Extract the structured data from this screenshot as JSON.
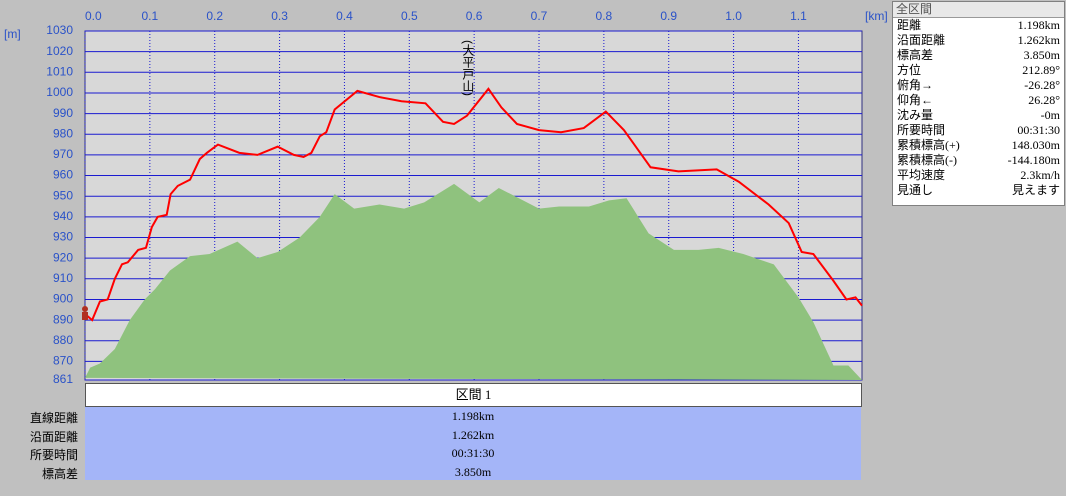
{
  "chart_data": {
    "type": "line",
    "unit_y": "[m]",
    "unit_x": "[km]",
    "annotation": "(大平戸山)",
    "xlim": [
      0,
      1.198
    ],
    "ylim": [
      861,
      1030
    ],
    "xticks": [
      {
        "value": 0,
        "label": "0.0"
      },
      0.1,
      0.2,
      0.3,
      0.4,
      0.5,
      0.6,
      0.7,
      0.8,
      0.9,
      {
        "value": 1,
        "label": "1.0"
      },
      1.1
    ],
    "yticks": [
      861,
      870,
      880,
      890,
      900,
      910,
      920,
      930,
      940,
      950,
      960,
      970,
      980,
      990,
      1000,
      1010,
      1020,
      1030
    ],
    "grid": true,
    "series": [
      {
        "type": "area",
        "color": "#8fc27e",
        "x": [
          0,
          0.008,
          0.023,
          0.046,
          0.069,
          0.092,
          0.108,
          0.131,
          0.162,
          0.192,
          0.235,
          0.266,
          0.297,
          0.331,
          0.362,
          0.385,
          0.415,
          0.454,
          0.492,
          0.523,
          0.569,
          0.608,
          0.638,
          0.7,
          0.731,
          0.777,
          0.808,
          0.835,
          0.869,
          0.908,
          0.946,
          0.977,
          1.015,
          1.062,
          1.1,
          1.123,
          1.154,
          1.177,
          1.198
        ],
        "values": [
          862,
          867,
          869,
          876,
          890,
          900,
          905,
          914,
          921,
          922,
          928,
          920,
          923,
          930,
          940,
          951,
          944,
          946,
          944,
          947,
          956,
          947,
          954,
          944,
          945,
          945,
          948,
          949,
          932,
          924,
          924,
          925,
          922,
          917,
          901,
          889,
          868,
          868,
          861
        ]
      },
      {
        "type": "line",
        "color": "#ff0000",
        "x": [
          0,
          0.011,
          0.023,
          0.035,
          0.046,
          0.057,
          0.066,
          0.082,
          0.094,
          0.103,
          0.112,
          0.126,
          0.132,
          0.143,
          0.162,
          0.177,
          0.188,
          0.205,
          0.238,
          0.266,
          0.297,
          0.322,
          0.337,
          0.349,
          0.362,
          0.372,
          0.385,
          0.42,
          0.454,
          0.488,
          0.525,
          0.552,
          0.569,
          0.589,
          0.622,
          0.642,
          0.666,
          0.7,
          0.734,
          0.769,
          0.803,
          0.831,
          0.872,
          0.915,
          0.974,
          1.008,
          1.054,
          1.085,
          1.105,
          1.123,
          1.154,
          1.174,
          1.188,
          1.198
        ],
        "values": [
          893,
          890,
          899,
          900,
          910,
          917,
          918,
          924,
          925,
          935,
          940,
          941,
          951,
          955,
          958,
          968,
          971,
          975,
          971,
          970,
          974,
          970,
          969,
          971,
          979,
          981,
          992,
          1001,
          998,
          996,
          995,
          986,
          985,
          989,
          1002,
          993,
          985,
          982,
          981,
          983,
          991,
          982,
          964,
          962,
          963,
          957,
          946,
          937,
          923,
          922,
          909,
          900,
          901,
          897
        ]
      }
    ]
  },
  "info_panel": {
    "title": "全区間",
    "rows": [
      [
        "距離",
        "1.198km"
      ],
      [
        "沿面距離",
        "1.262km"
      ],
      [
        "標高差",
        "3.850m"
      ],
      [
        "方位",
        "212.89°"
      ],
      [
        "俯角→",
        "-26.28°"
      ],
      [
        "仰角←",
        "26.28°"
      ],
      [
        "沈み量",
        "-0m"
      ],
      [
        "所要時間",
        "00:31:30"
      ],
      [
        "累積標高(+)",
        "148.030m"
      ],
      [
        "累積標高(-)",
        "-144.180m"
      ],
      [
        "平均速度",
        "2.3km/h"
      ],
      [
        "見通し",
        "見えます"
      ]
    ]
  },
  "section_table": {
    "header": "区間 1",
    "rows": [
      [
        "直線距離",
        "1.198km"
      ],
      [
        "沿面距離",
        "1.262km"
      ],
      [
        "所要時間",
        "00:31:30"
      ],
      [
        "標高差",
        "3.850m"
      ]
    ]
  }
}
